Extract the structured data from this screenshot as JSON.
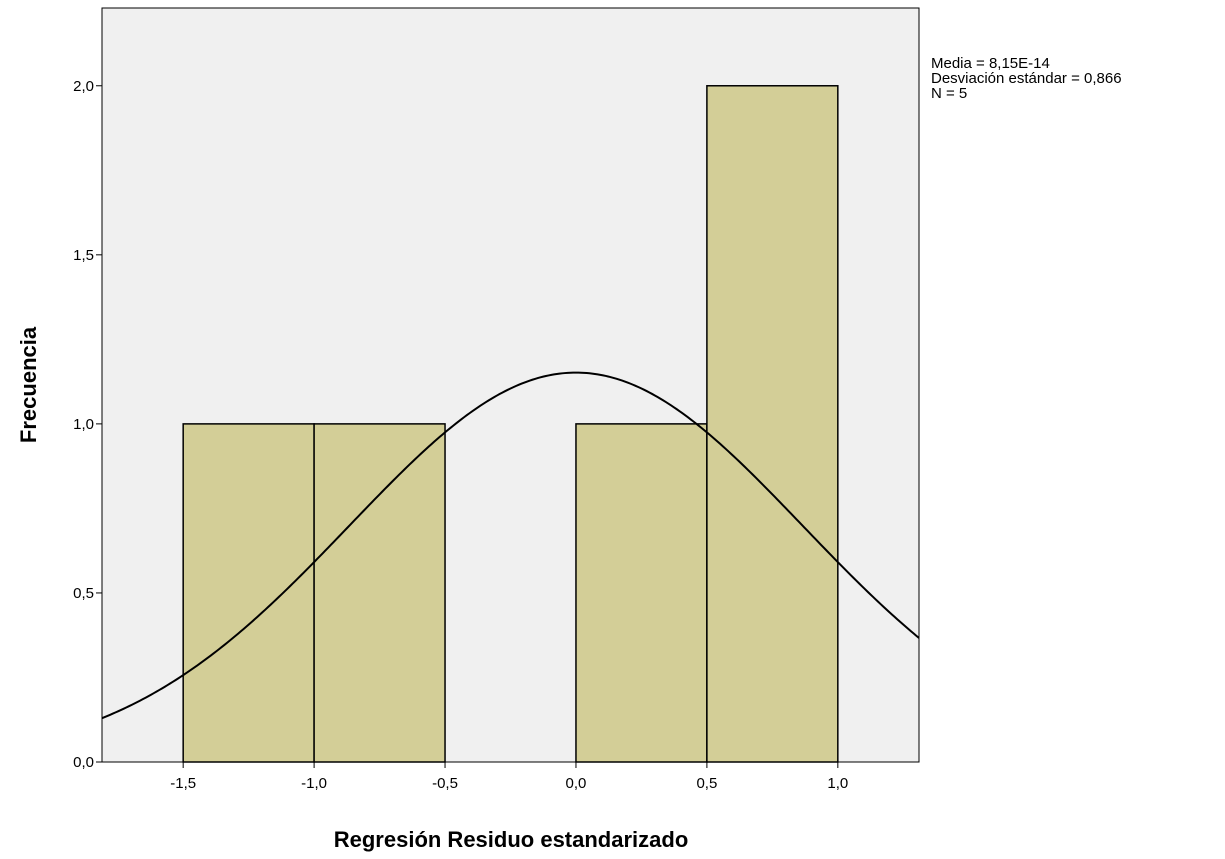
{
  "chart_data": {
    "type": "histogram",
    "xlabel": "Regresión Residuo estandarizado",
    "ylabel": "Frecuencia",
    "xlim": [
      -1.81,
      1.31
    ],
    "ylim": [
      0,
      2.23
    ],
    "bins": [
      {
        "x0": -1.5,
        "x1": -1.0,
        "count": 1
      },
      {
        "x0": -1.0,
        "x1": -0.5,
        "count": 1
      },
      {
        "x0": -0.5,
        "x1": 0.0,
        "count": 0
      },
      {
        "x0": 0.0,
        "x1": 0.5,
        "count": 1
      },
      {
        "x0": 0.5,
        "x1": 1.0,
        "count": 2
      }
    ],
    "x_ticks": [
      {
        "value": -1.5,
        "label": "-1,5"
      },
      {
        "value": -1.0,
        "label": "-1,0"
      },
      {
        "value": -0.5,
        "label": "-0,5"
      },
      {
        "value": 0.0,
        "label": "0,0"
      },
      {
        "value": 0.5,
        "label": "0,5"
      },
      {
        "value": 1.0,
        "label": "1,0"
      }
    ],
    "y_ticks": [
      {
        "value": 0.0,
        "label": "0,0"
      },
      {
        "value": 0.5,
        "label": "0,5"
      },
      {
        "value": 1.0,
        "label": "1,0"
      },
      {
        "value": 1.5,
        "label": "1,5"
      },
      {
        "value": 2.0,
        "label": "2,0"
      }
    ],
    "normal_curve": {
      "mean": 0.0,
      "sd": 0.866,
      "n": 5,
      "bin_width": 0.5
    },
    "stats": [
      "Media = 8,15E-14",
      "Desviación estándar = 0,866",
      "N = 5"
    ],
    "grid": false,
    "colors": {
      "plot_background": "#f0f0f0",
      "bar_fill": "#d3ce97",
      "bar_stroke": "#000000",
      "curve": "#000000"
    }
  }
}
